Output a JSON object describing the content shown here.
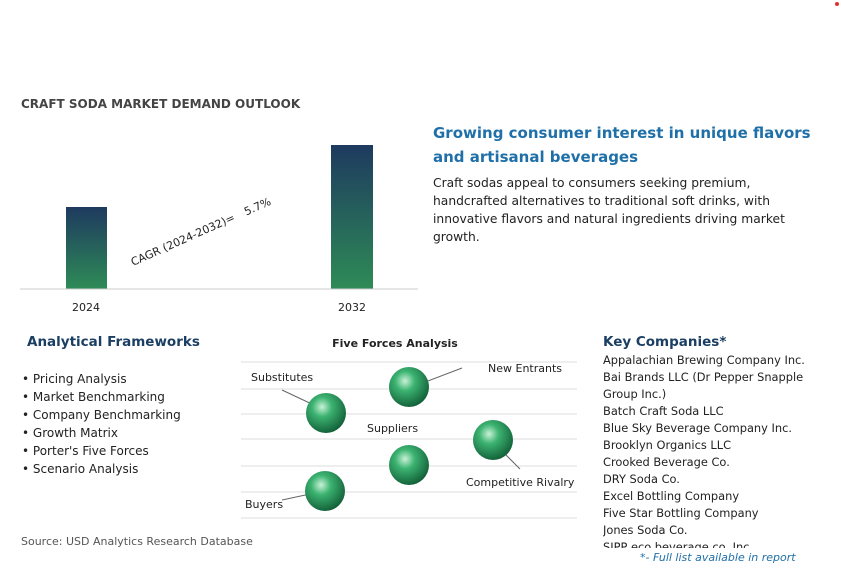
{
  "title": "CRAFT SODA MARKET DEMAND OUTLOOK",
  "years": [
    "2024",
    "2032"
  ],
  "cagr_label": "CAGR (2024-2032)=",
  "cagr_value": "5.7%",
  "headline": "Growing consumer interest in unique flavors and artisanal beverages",
  "description": "Craft sodas appeal to consumers seeking premium, handcrafted alternatives to traditional soft drinks, with innovative flavors and natural ingredients driving market growth.",
  "frameworks": {
    "title": "Analytical Frameworks",
    "items": [
      "Pricing Analysis",
      "Market Benchmarking",
      "Company Benchmarking",
      "Growth Matrix",
      "Porter's Five Forces",
      "Scenario Analysis"
    ]
  },
  "five_forces": {
    "title": "Five Forces Analysis",
    "labels": [
      "Substitutes",
      "New Entrants",
      "Suppliers",
      "Competitive Rivalry",
      "Buyers"
    ]
  },
  "companies": {
    "title": "Key Companies*",
    "items": [
      "Appalachian Brewing Company Inc.",
      "Bai Brands LLC (Dr Pepper Snapple Group Inc.)",
      "Batch Craft Soda LLC",
      "Blue Sky Beverage Company Inc.",
      "Brooklyn Organics LLC",
      "Crooked Beverage Co.",
      "DRY Soda Co.",
      "Excel Bottling Company",
      "Five Star Bottling Company",
      "Jones Soda Co.",
      "SIPP eco beverage co. Inc."
    ],
    "footnote": "*- Full list available in report"
  },
  "source": "Source: USD Analytics Research Database"
}
